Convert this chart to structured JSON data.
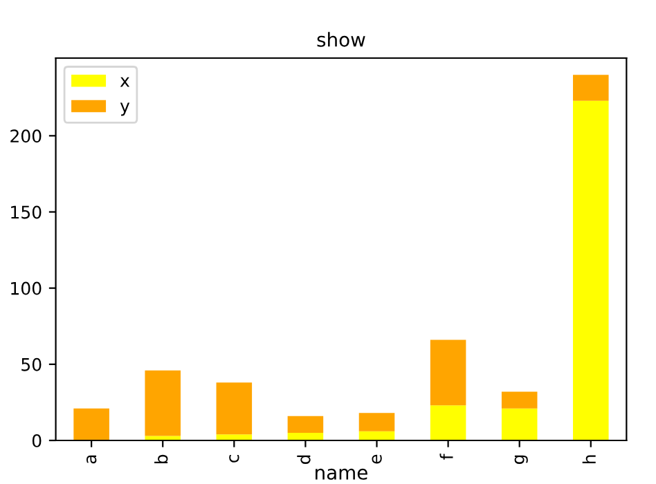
{
  "chart_data": {
    "type": "bar",
    "title": "show",
    "xlabel": "name",
    "stacked": true,
    "categories": [
      "a",
      "b",
      "c",
      "d",
      "e",
      "f",
      "g",
      "h"
    ],
    "series": [
      {
        "name": "x",
        "color": "#ffff00",
        "values": [
          null,
          3,
          4,
          5,
          6,
          23,
          21,
          223
        ]
      },
      {
        "name": "y",
        "color": "#ffa500",
        "values": [
          21,
          43,
          34,
          11,
          12,
          43,
          11,
          17
        ]
      }
    ],
    "ylim": [
      0,
      251
    ],
    "yticks": [
      0,
      50,
      100,
      150,
      200
    ],
    "legend": "top left",
    "grid": false
  }
}
